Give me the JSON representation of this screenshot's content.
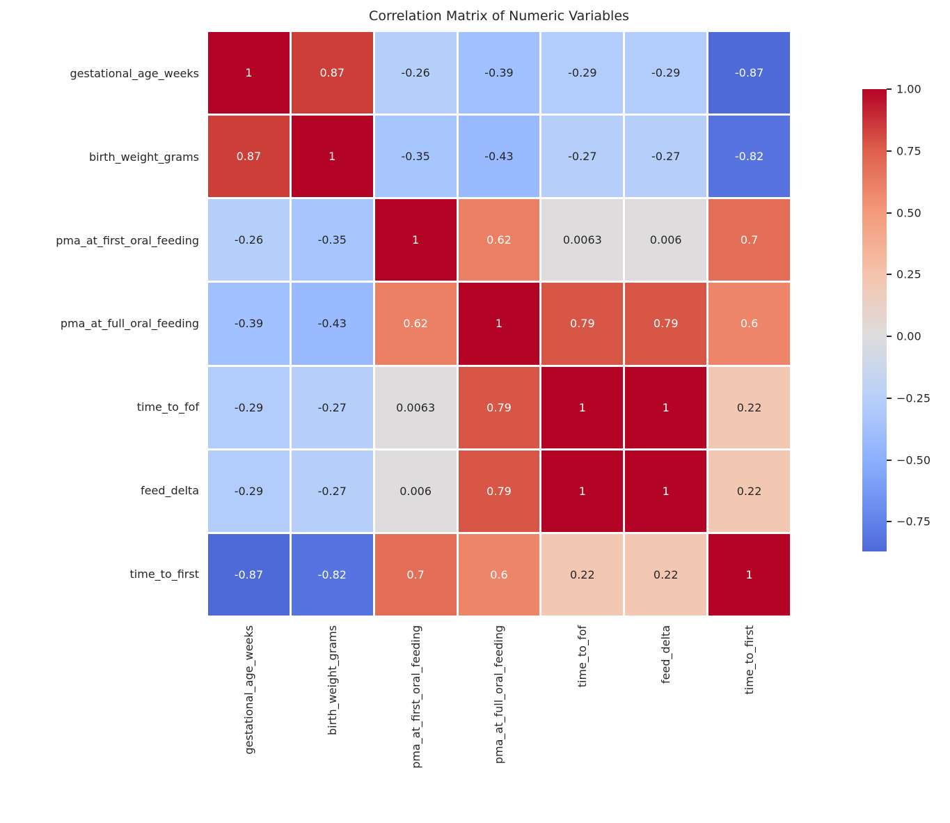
{
  "title": "Correlation Matrix of Numeric Variables",
  "chart_data": {
    "type": "heatmap",
    "title": "Correlation Matrix of Numeric Variables",
    "colormap": "coolwarm",
    "center": 0,
    "vmin": -0.87,
    "vmax": 1.0,
    "grid": "white-lines",
    "legend_position": "right-colorbar",
    "categories": [
      "gestational_age_weeks",
      "birth_weight_grams",
      "pma_at_first_oral_feeding",
      "pma_at_full_oral_feeding",
      "time_to_fof",
      "feed_delta",
      "time_to_first"
    ],
    "matrix": [
      [
        1,
        0.87,
        -0.26,
        -0.39,
        -0.29,
        -0.29,
        -0.87
      ],
      [
        0.87,
        1,
        -0.35,
        -0.43,
        -0.27,
        -0.27,
        -0.82
      ],
      [
        -0.26,
        -0.35,
        1,
        0.62,
        0.0063,
        0.006,
        0.7
      ],
      [
        -0.39,
        -0.43,
        0.62,
        1,
        0.79,
        0.79,
        0.6
      ],
      [
        -0.29,
        -0.27,
        0.0063,
        0.79,
        1,
        1,
        0.22
      ],
      [
        -0.29,
        -0.27,
        0.006,
        0.79,
        1,
        1,
        0.22
      ],
      [
        -0.87,
        -0.82,
        0.7,
        0.6,
        0.22,
        0.22,
        1
      ]
    ],
    "cell_labels": [
      [
        "1",
        "0.87",
        "-0.26",
        "-0.39",
        "-0.29",
        "-0.29",
        "-0.87"
      ],
      [
        "0.87",
        "1",
        "-0.35",
        "-0.43",
        "-0.27",
        "-0.27",
        "-0.82"
      ],
      [
        "-0.26",
        "-0.35",
        "1",
        "0.62",
        "0.0063",
        "0.006",
        "0.7"
      ],
      [
        "-0.39",
        "-0.43",
        "0.62",
        "1",
        "0.79",
        "0.79",
        "0.6"
      ],
      [
        "-0.29",
        "-0.27",
        "0.0063",
        "0.79",
        "1",
        "1",
        "0.22"
      ],
      [
        "-0.29",
        "-0.27",
        "0.006",
        "0.79",
        "1",
        "1",
        "0.22"
      ],
      [
        "-0.87",
        "-0.82",
        "0.7",
        "0.6",
        "0.22",
        "0.22",
        "1"
      ]
    ],
    "cell_styles": {
      "1": {
        "bg": "#B40426",
        "fg": "#FFFFFF"
      },
      "0.87": {
        "bg": "#CC3F39",
        "fg": "#FFFFFF"
      },
      "0.79": {
        "bg": "#D85646",
        "fg": "#FFFFFF"
      },
      "0.7": {
        "bg": "#E46D56",
        "fg": "#FFFFFF"
      },
      "0.62": {
        "bg": "#EC8064",
        "fg": "#FFFFFF"
      },
      "0.6": {
        "bg": "#EE8568",
        "fg": "#FFFFFF"
      },
      "0.22": {
        "bg": "#F3C8B3",
        "fg": "#262626"
      },
      "0.0063": {
        "bg": "#DEDCDC",
        "fg": "#262626"
      },
      "0.006": {
        "bg": "#DEDCDC",
        "fg": "#262626"
      },
      "-0.26": {
        "bg": "#B6CFFA",
        "fg": "#262626"
      },
      "-0.27": {
        "bg": "#B5CEFA",
        "fg": "#262626"
      },
      "-0.29": {
        "bg": "#B2CCFC",
        "fg": "#262626"
      },
      "-0.35": {
        "bg": "#A7C5FE",
        "fg": "#262626"
      },
      "-0.39": {
        "bg": "#A0C0FF",
        "fg": "#262626"
      },
      "-0.43": {
        "bg": "#99BAFF",
        "fg": "#262626"
      },
      "-0.82": {
        "bg": "#5673E0",
        "fg": "#FFFFFF"
      },
      "-0.87": {
        "bg": "#4E69D8",
        "fg": "#FFFFFF"
      }
    },
    "colorbar": {
      "ticks": [
        {
          "label": "1.00",
          "value": 1.0
        },
        {
          "label": "0.75",
          "value": 0.75
        },
        {
          "label": "0.50",
          "value": 0.5
        },
        {
          "label": "0.25",
          "value": 0.25
        },
        {
          "label": "0.00",
          "value": 0.0
        },
        {
          "label": "−0.25",
          "value": -0.25
        },
        {
          "label": "−0.50",
          "value": -0.5
        },
        {
          "label": "−0.75",
          "value": -0.75
        }
      ],
      "gradient_stops": [
        {
          "pos": 0,
          "color": "#B40426"
        },
        {
          "pos": 13.37,
          "color": "#DE604D"
        },
        {
          "pos": 26.74,
          "color": "#F49A7B"
        },
        {
          "pos": 40.11,
          "color": "#F5C4AD"
        },
        {
          "pos": 53.48,
          "color": "#DDDDDD"
        },
        {
          "pos": 66.84,
          "color": "#B8D0F9"
        },
        {
          "pos": 80.21,
          "color": "#8DB0FE"
        },
        {
          "pos": 93.58,
          "color": "#6282EA"
        },
        {
          "pos": 100,
          "color": "#4E69D8"
        }
      ]
    }
  }
}
